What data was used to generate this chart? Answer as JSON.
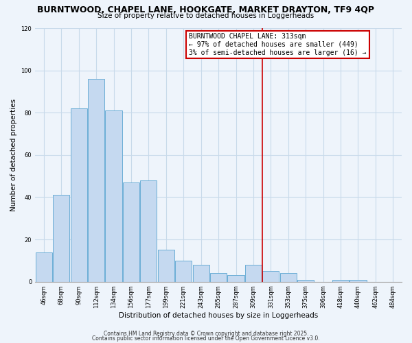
{
  "title1": "BURNTWOOD, CHAPEL LANE, HOOKGATE, MARKET DRAYTON, TF9 4QP",
  "title2": "Size of property relative to detached houses in Loggerheads",
  "xlabel": "Distribution of detached houses by size in Loggerheads",
  "ylabel": "Number of detached properties",
  "bar_values": [
    14,
    41,
    82,
    96,
    81,
    47,
    48,
    15,
    10,
    8,
    4,
    3,
    8,
    5,
    4,
    1,
    0,
    1,
    1,
    0,
    0
  ],
  "bar_labels": [
    "46sqm",
    "68sqm",
    "90sqm",
    "112sqm",
    "134sqm",
    "156sqm",
    "177sqm",
    "199sqm",
    "221sqm",
    "243sqm",
    "265sqm",
    "287sqm",
    "309sqm",
    "331sqm",
    "353sqm",
    "375sqm",
    "396sqm",
    "418sqm",
    "440sqm",
    "462sqm",
    "484sqm"
  ],
  "bar_color": "#c5d9f0",
  "bar_edge_color": "#6baed6",
  "grid_color": "#c8daea",
  "bg_color": "#eef4fb",
  "vline_color": "#cc0000",
  "vline_idx": 12,
  "annotation_title": "BURNTWOOD CHAPEL LANE: 313sqm",
  "annotation_line1": "← 97% of detached houses are smaller (449)",
  "annotation_line2": "3% of semi-detached houses are larger (16) →",
  "annotation_box_color": "#cc0000",
  "ylim": [
    0,
    120
  ],
  "yticks": [
    0,
    20,
    40,
    60,
    80,
    100,
    120
  ],
  "footnote1": "Contains HM Land Registry data © Crown copyright and database right 2025.",
  "footnote2": "Contains public sector information licensed under the Open Government Licence v3.0."
}
